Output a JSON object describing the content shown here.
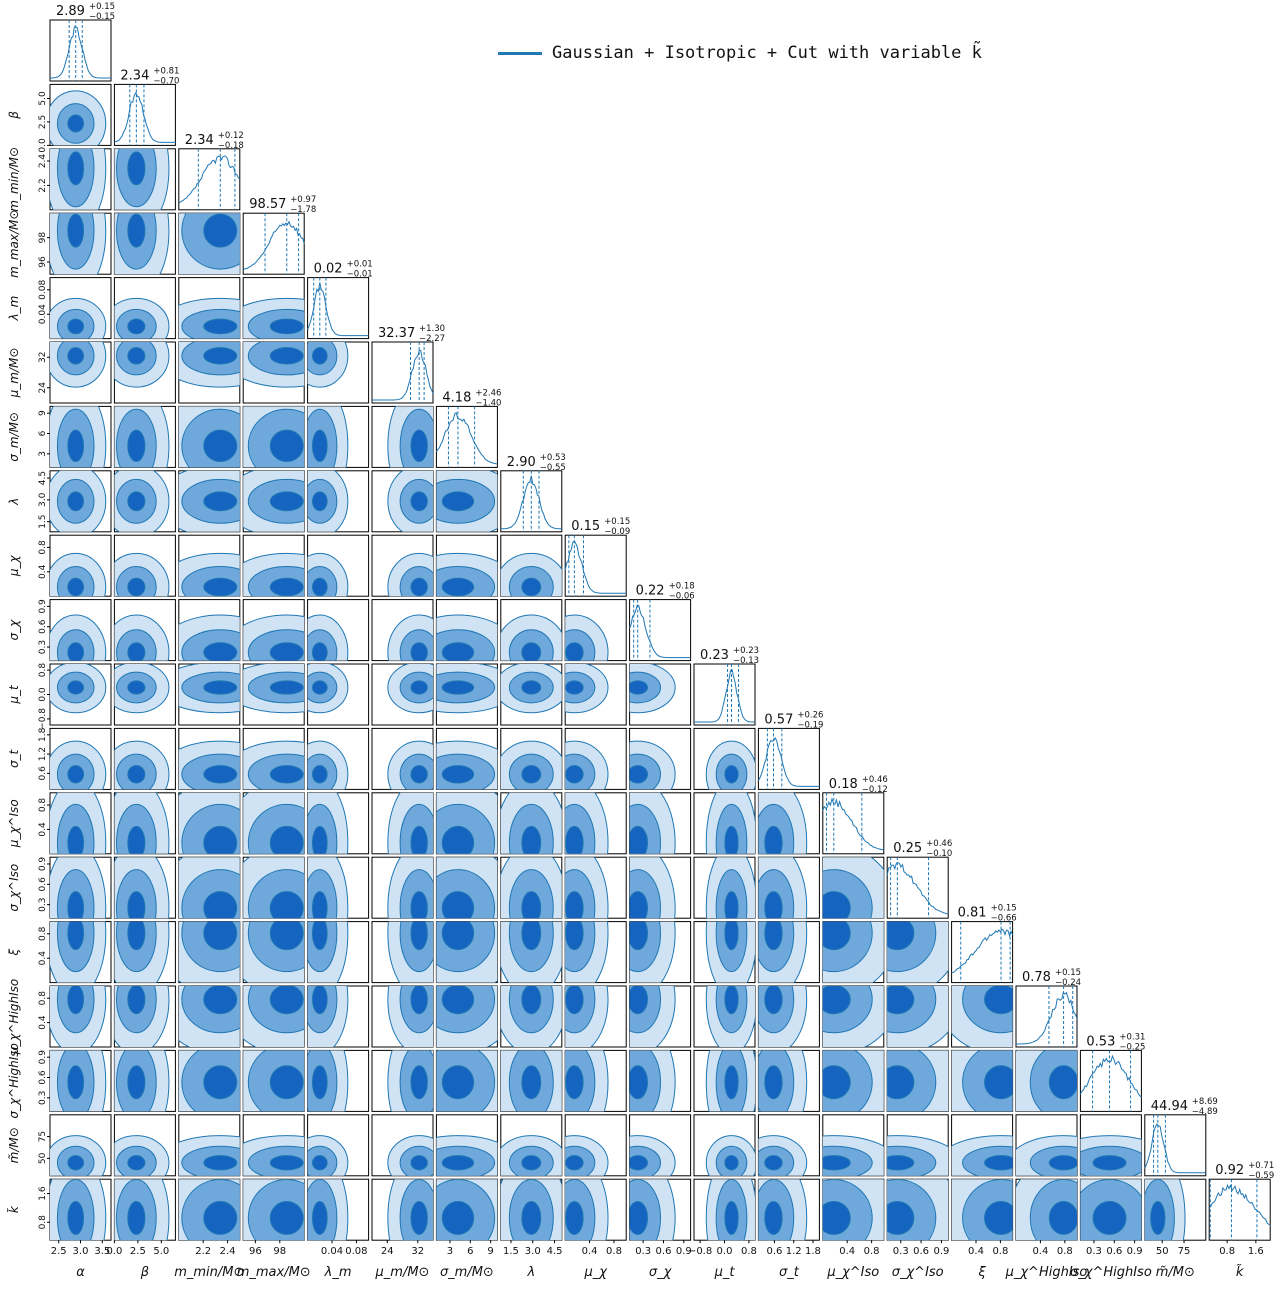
{
  "legend": {
    "label": "Gaussian + Isotropic + Cut with variable k̃",
    "color": "#1f77b4"
  },
  "chart_data": {
    "type": "corner",
    "parameters": [
      {
        "key": "alpha",
        "label": "α",
        "median": 2.89,
        "plus": 0.15,
        "minus": 0.15,
        "range": [
          2.3,
          3.7
        ],
        "ticks": [
          2.5,
          3.0,
          3.5
        ],
        "title": "2.89",
        "title_plus": "+0.15",
        "title_minus": "−0.15",
        "tick_labels": [
          "2.5",
          "3.0",
          "3.5"
        ]
      },
      {
        "key": "beta",
        "label": "β",
        "median": 2.34,
        "plus": 0.81,
        "minus": 0.7,
        "range": [
          0.0,
          6.5
        ],
        "ticks": [
          0.0,
          2.5,
          5.0
        ],
        "title": "2.34",
        "title_plus": "+0.81",
        "title_minus": "−0.70",
        "tick_labels": [
          "0.0",
          "2.5",
          "5.0"
        ]
      },
      {
        "key": "m_min",
        "label": "m_min/M⊙",
        "median": 2.34,
        "plus": 0.12,
        "minus": 0.18,
        "range": [
          2.0,
          2.5
        ],
        "ticks": [
          2.2,
          2.4
        ],
        "title": "2.34",
        "title_plus": "+0.12",
        "title_minus": "−0.18",
        "tick_labels": [
          "2.2",
          "2.4"
        ]
      },
      {
        "key": "m_max",
        "label": "m_max/M⊙",
        "median": 98.57,
        "plus": 0.97,
        "minus": 1.78,
        "range": [
          95.0,
          100.0
        ],
        "ticks": [
          96,
          98
        ],
        "title": "98.57",
        "title_plus": "+0.97",
        "title_minus": "−1.78",
        "tick_labels": [
          "96",
          "98"
        ]
      },
      {
        "key": "lambda_m",
        "label": "λ_m",
        "median": 0.02,
        "plus": 0.01,
        "minus": 0.01,
        "range": [
          0.0,
          0.1
        ],
        "ticks": [
          0.04,
          0.08
        ],
        "title": "0.02",
        "title_plus": "+0.01",
        "title_minus": "−0.01",
        "tick_labels": [
          "0.04",
          "0.08"
        ]
      },
      {
        "key": "mu_m",
        "label": "μ_m/M⊙",
        "median": 32.37,
        "plus": 1.3,
        "minus": 2.27,
        "range": [
          20.0,
          36.0
        ],
        "ticks": [
          24,
          32
        ],
        "title": "32.37",
        "title_plus": "+1.30",
        "title_minus": "−2.27",
        "tick_labels": [
          "24",
          "32"
        ]
      },
      {
        "key": "sigma_m",
        "label": "σ_m/M⊙",
        "median": 4.18,
        "plus": 2.46,
        "minus": 1.4,
        "range": [
          1.0,
          10.0
        ],
        "ticks": [
          3,
          6,
          9
        ],
        "title": "4.18",
        "title_plus": "+2.46",
        "title_minus": "−1.40",
        "tick_labels": [
          "3",
          "6",
          "9"
        ]
      },
      {
        "key": "lambda",
        "label": "λ",
        "median": 2.9,
        "plus": 0.53,
        "minus": 0.55,
        "range": [
          0.8,
          5.0
        ],
        "ticks": [
          1.5,
          3.0,
          4.5
        ],
        "title": "2.90",
        "title_plus": "+0.53",
        "title_minus": "−0.55",
        "tick_labels": [
          "1.5",
          "3.0",
          "4.5"
        ]
      },
      {
        "key": "mu_chi",
        "label": "μ_χ",
        "median": 0.15,
        "plus": 0.15,
        "minus": 0.09,
        "range": [
          0.0,
          1.0
        ],
        "ticks": [
          0.4,
          0.8
        ],
        "title": "0.15",
        "title_plus": "+0.15",
        "title_minus": "−0.09",
        "tick_labels": [
          "0.4",
          "0.8"
        ]
      },
      {
        "key": "sigma_chi",
        "label": "σ_χ",
        "median": 0.22,
        "plus": 0.18,
        "minus": 0.06,
        "range": [
          0.1,
          1.0
        ],
        "ticks": [
          0.3,
          0.6,
          0.9
        ],
        "title": "0.22",
        "title_plus": "+0.18",
        "title_minus": "−0.06",
        "tick_labels": [
          "0.3",
          "0.6",
          "0.9"
        ]
      },
      {
        "key": "mu_t",
        "label": "μ_t",
        "median": 0.23,
        "plus": 0.23,
        "minus": 0.13,
        "range": [
          -1.0,
          1.0
        ],
        "ticks": [
          -0.8,
          0.0,
          0.8
        ],
        "title": "0.23",
        "title_plus": "+0.23",
        "title_minus": "−0.13",
        "tick_labels": [
          "−0.8",
          "0.0",
          "0.8"
        ]
      },
      {
        "key": "sigma_t",
        "label": "σ_t",
        "median": 0.57,
        "plus": 0.26,
        "minus": 0.19,
        "range": [
          0.1,
          2.0
        ],
        "ticks": [
          0.6,
          1.2,
          1.8
        ],
        "title": "0.57",
        "title_plus": "+0.26",
        "title_minus": "−0.19",
        "tick_labels": [
          "0.6",
          "1.2",
          "1.8"
        ]
      },
      {
        "key": "mu_chi_iso",
        "label": "μ_χ^Iso",
        "median": 0.18,
        "plus": 0.46,
        "minus": 0.12,
        "range": [
          0.0,
          1.0
        ],
        "ticks": [
          0.4,
          0.8
        ],
        "title": "0.18",
        "title_plus": "+0.46",
        "title_minus": "−0.12",
        "tick_labels": [
          "0.4",
          "0.8"
        ]
      },
      {
        "key": "sigma_chi_iso",
        "label": "σ_χ^Iso",
        "median": 0.25,
        "plus": 0.46,
        "minus": 0.1,
        "range": [
          0.1,
          1.0
        ],
        "ticks": [
          0.3,
          0.6,
          0.9
        ],
        "title": "0.25",
        "title_plus": "+0.46",
        "title_minus": "−0.10",
        "tick_labels": [
          "0.3",
          "0.6",
          "0.9"
        ]
      },
      {
        "key": "xi",
        "label": "ξ",
        "median": 0.81,
        "plus": 0.15,
        "minus": 0.66,
        "range": [
          0.0,
          1.0
        ],
        "ticks": [
          0.4,
          0.8
        ],
        "title": "0.81",
        "title_plus": "+0.15",
        "title_minus": "−0.66",
        "tick_labels": [
          "0.4",
          "0.8"
        ]
      },
      {
        "key": "mu_chi_highiso",
        "label": "μ_χ^HighIso",
        "median": 0.78,
        "plus": 0.15,
        "minus": 0.24,
        "range": [
          0.0,
          1.0
        ],
        "ticks": [
          0.4,
          0.8
        ],
        "title": "0.78",
        "title_plus": "+0.15",
        "title_minus": "−0.24",
        "tick_labels": [
          "0.4",
          "0.8"
        ]
      },
      {
        "key": "sigma_chi_highiso",
        "label": "σ_χ^HighIso",
        "median": 0.53,
        "plus": 0.31,
        "minus": 0.25,
        "range": [
          0.1,
          1.0
        ],
        "ticks": [
          0.3,
          0.6,
          0.9
        ],
        "title": "0.53",
        "title_plus": "+0.31",
        "title_minus": "−0.25",
        "tick_labels": [
          "0.3",
          "0.6",
          "0.9"
        ]
      },
      {
        "key": "m_tilde",
        "label": "m̃/M⊙",
        "median": 44.94,
        "plus": 8.69,
        "minus": 4.89,
        "range": [
          30.0,
          100.0
        ],
        "ticks": [
          50,
          75
        ],
        "title": "44.94",
        "title_plus": "+8.69",
        "title_minus": "−4.89",
        "tick_labels": [
          "50",
          "75"
        ]
      },
      {
        "key": "k_tilde",
        "label": "k̃",
        "median": 0.92,
        "plus": 0.71,
        "minus": 0.59,
        "range": [
          0.3,
          2.0
        ],
        "ticks": [
          0.8,
          1.6
        ],
        "title": "0.92",
        "title_plus": "+0.71",
        "title_minus": "−0.59",
        "tick_labels": [
          "0.8",
          "1.6"
        ]
      }
    ],
    "colors": {
      "line": "#1f77b4",
      "level_1": "#cfe3f4",
      "level_2": "#6fa8da",
      "level_3": "#1565c0"
    }
  }
}
